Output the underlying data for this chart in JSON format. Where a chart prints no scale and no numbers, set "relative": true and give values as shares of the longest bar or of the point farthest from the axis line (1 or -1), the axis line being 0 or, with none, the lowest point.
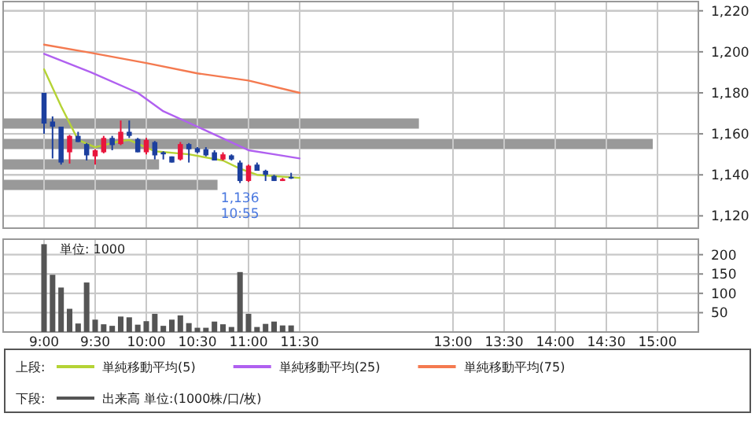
{
  "chart_data": [
    {
      "type": "candlestick",
      "legend_title": "上段:",
      "legend": "bottom",
      "grid": true,
      "tick_labels": "y",
      "x": [
        9,
        9.0833,
        9.1667,
        9.25,
        9.3333,
        9.4167,
        9.5,
        9.5833,
        9.6667,
        9.75,
        9.8333,
        9.9167,
        10,
        10.0833,
        10.1667,
        10.25,
        10.3333,
        10.4167,
        10.5,
        10.5833,
        10.6667,
        10.75,
        10.8333,
        10.9167,
        11,
        11.0833,
        11.1667,
        11.25,
        11.3333,
        11.4167
      ],
      "ohlc": [
        [
          1180,
          1180,
          1160,
          1165
        ],
        [
          1166,
          1168.5,
          1148,
          1163.5
        ],
        [
          1163.5,
          1163.5,
          1145,
          1146
        ],
        [
          1151,
          1159.5,
          1145.5,
          1159
        ],
        [
          1159,
          1161,
          1156,
          1156
        ],
        [
          1155,
          1155.5,
          1147,
          1149.5
        ],
        [
          1149,
          1152.5,
          1145,
          1152
        ],
        [
          1151,
          1159,
          1150.5,
          1158
        ],
        [
          1158,
          1159,
          1152,
          1154.5
        ],
        [
          1155,
          1166.5,
          1154.5,
          1161
        ],
        [
          1161,
          1166.5,
          1158,
          1159
        ],
        [
          1157.5,
          1158,
          1151,
          1151
        ],
        [
          1151,
          1158,
          1150,
          1157
        ],
        [
          1156,
          1156.5,
          1147.5,
          1149.5
        ],
        [
          1151,
          1151.5,
          1147.5,
          1150
        ],
        [
          1149,
          1149,
          1146,
          1146
        ],
        [
          1147.5,
          1156,
          1147,
          1155
        ],
        [
          1155,
          1155.5,
          1146,
          1152.5
        ],
        [
          1153,
          1153.5,
          1150.5,
          1151
        ],
        [
          1152.5,
          1153.5,
          1149,
          1149.5
        ],
        [
          1151,
          1152,
          1147,
          1147
        ],
        [
          1147.5,
          1151,
          1147,
          1150
        ],
        [
          1149.5,
          1150,
          1147,
          1147.5
        ],
        [
          1146,
          1147,
          1136,
          1137
        ],
        [
          1137,
          1145,
          1136.5,
          1144.5
        ],
        [
          1145,
          1146,
          1142,
          1142
        ],
        [
          1142,
          1142.5,
          1137,
          1140
        ],
        [
          1139.5,
          1140,
          1137,
          1137
        ],
        [
          1137,
          1138.5,
          1137,
          1138
        ],
        [
          1139,
          1141,
          1138,
          1138.5
        ]
      ],
      "series": [
        {
          "name": "単純移動平均(5)",
          "type": "line",
          "color": "#b5d335",
          "x": [
            9,
            9.1667,
            9.3333,
            9.5,
            9.75,
            9.8333,
            10.0833,
            10.4167,
            10.75,
            10.9167,
            11.0833,
            11.5
          ],
          "values": [
            1191.5,
            1173.5,
            1157,
            1153.5,
            1156.5,
            1157,
            1151.5,
            1150,
            1147,
            1143,
            1140,
            1138.5
          ]
        },
        {
          "name": "単純移動平均(25)",
          "type": "line",
          "color": "#b060f0",
          "x": [
            9,
            9.4583,
            9.9167,
            10.1667,
            10.5,
            11,
            11.25,
            11.5
          ],
          "values": [
            1199,
            1190,
            1180,
            1171,
            1163.5,
            1152,
            1150,
            1148
          ]
        },
        {
          "name": "単純移動平均(75)",
          "type": "line",
          "color": "#f47a50",
          "x": [
            9,
            9.4583,
            10,
            10.5,
            11,
            11.5
          ],
          "values": [
            1203.5,
            1199.5,
            1194.5,
            1189.5,
            1186,
            1180
          ]
        }
      ],
      "annotations": [
        {
          "text": "1,136\n10:55",
          "x": 10.9167,
          "y": 1136
        }
      ],
      "xlim": [
        8.6,
        15.4
      ],
      "xticks": [
        9,
        9.5,
        10,
        10.5,
        11,
        11.5,
        13,
        13.5,
        14,
        14.5,
        15
      ],
      "ylim": [
        1114,
        1224.5
      ],
      "yticks": [
        {
          "value": 1120,
          "label": "1,120"
        },
        {
          "value": 1140,
          "label": "1,140"
        },
        {
          "value": 1160,
          "label": "1,160"
        },
        {
          "value": 1180,
          "label": "1,180"
        },
        {
          "value": 1200,
          "label": "1,200"
        },
        {
          "value": 1220,
          "label": "1,220"
        }
      ]
    },
    {
      "type": "bar",
      "orientation": "horizontal",
      "relative": true,
      "color": "#999999",
      "categories": [
        null,
        null,
        null,
        null
      ],
      "values": [
        0.64,
        1,
        0.24,
        0.33
      ]
    },
    {
      "type": "bar",
      "legend_title": "下段:",
      "legend": "bottom",
      "grid": true,
      "x": [
        9,
        9.0833,
        9.1667,
        9.25,
        9.3333,
        9.4167,
        9.5,
        9.5833,
        9.6667,
        9.75,
        9.8333,
        9.9167,
        10,
        10.0833,
        10.1667,
        10.25,
        10.3333,
        10.4167,
        10.5,
        10.5833,
        10.6667,
        10.75,
        10.8333,
        10.9167,
        11,
        11.0833,
        11.1667,
        11.25,
        11.3333,
        11.4167
      ],
      "series": [
        {
          "name": "出来高 単位:(1000株/口/枚)",
          "color": "#555555",
          "values": [
            227,
            148,
            115,
            60,
            22,
            128,
            32,
            20,
            16,
            40,
            38,
            19,
            28,
            47,
            16,
            32,
            43,
            23,
            11,
            11,
            27,
            20,
            13,
            155,
            47,
            13,
            21,
            27,
            17,
            17
          ]
        }
      ],
      "annotations": [
        "単位: 1000"
      ],
      "xlim": [
        8.6,
        15.4
      ],
      "xticks": [
        {
          "value": 9,
          "label": "9:00"
        },
        {
          "value": 9.5,
          "label": "9:30"
        },
        {
          "value": 10,
          "label": "10:00"
        },
        {
          "value": 10.5,
          "label": "10:30"
        },
        {
          "value": 11,
          "label": "11:00"
        },
        {
          "value": 11.5,
          "label": "11:30"
        },
        {
          "value": 13,
          "label": "13:00"
        },
        {
          "value": 13.5,
          "label": "13:30"
        },
        {
          "value": 14,
          "label": "14:00"
        },
        {
          "value": 14.5,
          "label": "14:30"
        },
        {
          "value": 15,
          "label": "15:00"
        }
      ],
      "ylim": [
        0,
        240
      ],
      "yticks": [
        50,
        100,
        150,
        200
      ]
    }
  ]
}
